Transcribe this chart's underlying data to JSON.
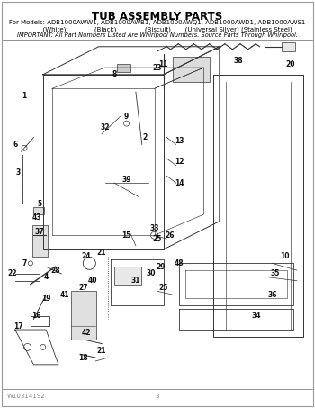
{
  "title": "TUB ASSEMBLY PARTS",
  "subtitle_line1": "For Models: ADB1000AWW1, ADB1000AWB1, ADB1000AWQ1, ADB1000AWD1, ADB1000AWS1",
  "subtitle_line2": "          (White)              (Black)              (Biscuit)       (Universal Silver) (Stainless Steel)",
  "important": "IMPORTANT: All Part Numbers Listed Are Whirlpool Numbers. Source Parts Through Whirlpool.",
  "footer_left": "W10314192",
  "footer_center": "3",
  "bg_color": "#ffffff",
  "line_color": "#333333",
  "text_color": "#000000",
  "title_fontsize": 8.5,
  "subtitle_fontsize": 5.0,
  "important_fontsize": 4.8,
  "footer_fontsize": 5.0,
  "fig_width": 3.5,
  "fig_height": 4.53,
  "dpi": 100
}
